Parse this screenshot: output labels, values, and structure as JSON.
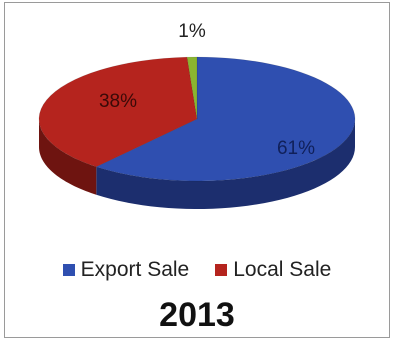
{
  "chart_data": {
    "type": "pie",
    "title": "2013",
    "slices": [
      {
        "label": "Export Sale",
        "value": 61,
        "display": "61%",
        "color": "#2f4fb0",
        "side": "#1c2e6e"
      },
      {
        "label": "Local Sale",
        "value": 38,
        "display": "38%",
        "color": "#b5241e",
        "side": "#6e1410"
      },
      {
        "label": "",
        "value": 1,
        "display": "1%",
        "color": "#8ab530",
        "side": "#55731d"
      }
    ],
    "legend": {
      "position": "bottom",
      "entries": [
        {
          "label": "Export Sale",
          "color": "#2f4fb0"
        },
        {
          "label": "Local Sale",
          "color": "#b5241e"
        }
      ]
    }
  }
}
